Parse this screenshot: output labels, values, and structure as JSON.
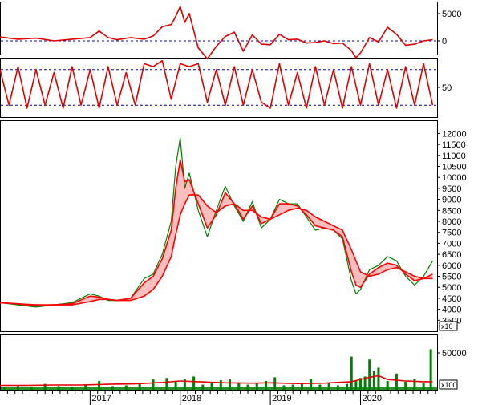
{
  "chart_data": [
    {
      "type": "line",
      "panel": "oscillator",
      "ylim": [
        -2500,
        7200
      ],
      "yticks": [
        {
          "value": 5000,
          "label": "5000"
        },
        {
          "value": 0,
          "label": "0"
        }
      ],
      "reference_lines": [
        0
      ],
      "series": [
        {
          "color": "#e00000",
          "x": [
            2016.0,
            2016.2,
            2016.4,
            2016.6,
            2016.8,
            2017.0,
            2017.1,
            2017.2,
            2017.3,
            2017.45,
            2017.6,
            2017.7,
            2017.8,
            2017.9,
            2017.95,
            2018.0,
            2018.05,
            2018.1,
            2018.2,
            2018.3,
            2018.4,
            2018.5,
            2018.6,
            2018.7,
            2018.8,
            2018.9,
            2019.0,
            2019.1,
            2019.2,
            2019.3,
            2019.4,
            2019.5,
            2019.6,
            2019.7,
            2019.8,
            2019.9,
            2019.95,
            2020.0,
            2020.1,
            2020.2,
            2020.3,
            2020.4,
            2020.5,
            2020.6,
            2020.7,
            2020.8
          ],
          "values": [
            700,
            300,
            500,
            0,
            300,
            600,
            1800,
            600,
            200,
            600,
            300,
            900,
            2600,
            3000,
            4500,
            6300,
            3400,
            5000,
            -1300,
            -3300,
            -1000,
            800,
            1600,
            -1900,
            1100,
            -600,
            -700,
            1200,
            200,
            300,
            -400,
            -300,
            0,
            -500,
            -400,
            -1800,
            -3100,
            -2200,
            600,
            -200,
            2500,
            1200,
            -800,
            -600,
            0,
            200
          ]
        }
      ]
    },
    {
      "type": "line",
      "panel": "stochastic",
      "ylim": [
        0,
        100
      ],
      "yticks": [
        {
          "value": 50,
          "label": "50"
        }
      ],
      "reference_lines": [
        20,
        80
      ],
      "series": [
        {
          "color": "#e00000",
          "x": [
            2016.0,
            2016.1,
            2016.2,
            2016.3,
            2016.4,
            2016.5,
            2016.6,
            2016.7,
            2016.8,
            2016.9,
            2017.0,
            2017.1,
            2017.2,
            2017.3,
            2017.4,
            2017.5,
            2017.6,
            2017.7,
            2017.8,
            2017.9,
            2018.0,
            2018.1,
            2018.2,
            2018.3,
            2018.4,
            2018.5,
            2018.6,
            2018.7,
            2018.8,
            2018.9,
            2019.0,
            2019.1,
            2019.2,
            2019.3,
            2019.4,
            2019.5,
            2019.6,
            2019.7,
            2019.8,
            2019.9,
            2020.0,
            2020.1,
            2020.2,
            2020.3,
            2020.4,
            2020.5,
            2020.6,
            2020.7,
            2020.8
          ],
          "values": [
            80,
            20,
            85,
            15,
            80,
            20,
            75,
            15,
            85,
            20,
            80,
            15,
            85,
            20,
            75,
            20,
            90,
            85,
            95,
            30,
            90,
            85,
            90,
            25,
            80,
            20,
            85,
            20,
            80,
            25,
            15,
            90,
            20,
            75,
            15,
            85,
            20,
            80,
            15,
            85,
            20,
            90,
            20,
            80,
            15,
            85,
            20,
            90,
            20
          ]
        }
      ]
    },
    {
      "type": "line",
      "panel": "price",
      "ylim": [
        3000,
        12600
      ],
      "yticks": [
        3500,
        4000,
        4500,
        5000,
        5500,
        6000,
        6500,
        7000,
        7500,
        8000,
        8500,
        9000,
        9500,
        10000,
        10500,
        11000,
        11500,
        12000
      ],
      "multiplier_label": "x10",
      "series": [
        {
          "role": "price",
          "color": "#008000",
          "x": [
            2016.0,
            2016.2,
            2016.4,
            2016.6,
            2016.8,
            2017.0,
            2017.1,
            2017.2,
            2017.3,
            2017.45,
            2017.6,
            2017.7,
            2017.8,
            2017.9,
            2017.95,
            2018.0,
            2018.05,
            2018.1,
            2018.2,
            2018.3,
            2018.4,
            2018.5,
            2018.6,
            2018.7,
            2018.8,
            2018.9,
            2019.0,
            2019.1,
            2019.2,
            2019.3,
            2019.4,
            2019.5,
            2019.6,
            2019.7,
            2019.8,
            2019.9,
            2019.95,
            2020.0,
            2020.1,
            2020.2,
            2020.3,
            2020.4,
            2020.5,
            2020.6,
            2020.7,
            2020.8
          ],
          "values": [
            4300,
            4200,
            4100,
            4200,
            4300,
            4700,
            4600,
            4400,
            4400,
            4500,
            5400,
            5600,
            6500,
            8000,
            10500,
            11800,
            9500,
            10200,
            8500,
            7300,
            8500,
            9600,
            8700,
            8000,
            8900,
            7700,
            8100,
            9000,
            8800,
            8800,
            8200,
            7600,
            7700,
            7600,
            7200,
            5300,
            4700,
            4900,
            5800,
            6000,
            6400,
            6200,
            5500,
            5100,
            5500,
            6200
          ]
        },
        {
          "role": "moving-average-ribbon-fast",
          "color": "#ff0000",
          "x": [
            2016.0,
            2016.2,
            2016.4,
            2016.6,
            2016.8,
            2017.0,
            2017.1,
            2017.2,
            2017.3,
            2017.45,
            2017.6,
            2017.7,
            2017.8,
            2017.9,
            2017.95,
            2018.0,
            2018.05,
            2018.1,
            2018.2,
            2018.3,
            2018.4,
            2018.5,
            2018.6,
            2018.7,
            2018.8,
            2018.9,
            2019.0,
            2019.1,
            2019.2,
            2019.3,
            2019.4,
            2019.5,
            2019.6,
            2019.7,
            2019.8,
            2019.9,
            2019.95,
            2020.0,
            2020.1,
            2020.2,
            2020.3,
            2020.4,
            2020.5,
            2020.6,
            2020.7,
            2020.8
          ],
          "values": [
            4300,
            4250,
            4150,
            4200,
            4250,
            4600,
            4550,
            4450,
            4400,
            4500,
            5200,
            5500,
            6300,
            7600,
            9500,
            10800,
            9800,
            9900,
            8800,
            7700,
            8300,
            9300,
            8800,
            8100,
            8700,
            7900,
            8100,
            8800,
            8800,
            8700,
            8300,
            7800,
            7700,
            7600,
            7300,
            5700,
            5100,
            5000,
            5600,
            5900,
            6100,
            6000,
            5600,
            5300,
            5400,
            5600
          ]
        },
        {
          "role": "moving-average-ribbon-slow",
          "color": "#ff0000",
          "x": [
            2016.0,
            2016.2,
            2016.4,
            2016.6,
            2016.8,
            2017.0,
            2017.1,
            2017.2,
            2017.3,
            2017.45,
            2017.6,
            2017.7,
            2017.8,
            2017.9,
            2017.95,
            2018.0,
            2018.05,
            2018.1,
            2018.2,
            2018.3,
            2018.4,
            2018.5,
            2018.6,
            2018.7,
            2018.8,
            2018.9,
            2019.0,
            2019.1,
            2019.2,
            2019.3,
            2019.4,
            2019.5,
            2019.6,
            2019.7,
            2019.8,
            2019.9,
            2019.95,
            2020.0,
            2020.1,
            2020.2,
            2020.3,
            2020.4,
            2020.5,
            2020.6,
            2020.7,
            2020.8
          ],
          "values": [
            4300,
            4250,
            4200,
            4200,
            4200,
            4350,
            4450,
            4450,
            4400,
            4400,
            4600,
            4900,
            5500,
            6400,
            7400,
            8300,
            8800,
            9200,
            9200,
            8700,
            8400,
            8700,
            8800,
            8500,
            8500,
            8200,
            8100,
            8300,
            8500,
            8600,
            8500,
            8200,
            8000,
            7800,
            7600,
            6700,
            6200,
            5700,
            5500,
            5600,
            5800,
            5900,
            5700,
            5500,
            5400,
            5400
          ]
        }
      ]
    },
    {
      "type": "bar",
      "panel": "volume",
      "ylim": [
        0,
        75000
      ],
      "yticks": [
        {
          "value": 50000,
          "label": "50000"
        }
      ],
      "multiplier_label": "x100",
      "series": [
        {
          "role": "volume",
          "color": "#008000",
          "x": [
            2016.05,
            2016.2,
            2016.35,
            2016.5,
            2016.65,
            2016.8,
            2016.95,
            2017.1,
            2017.25,
            2017.4,
            2017.55,
            2017.7,
            2017.85,
            2017.95,
            2018.05,
            2018.15,
            2018.25,
            2018.35,
            2018.45,
            2018.55,
            2018.65,
            2018.75,
            2018.85,
            2018.95,
            2019.05,
            2019.15,
            2019.25,
            2019.35,
            2019.45,
            2019.55,
            2019.65,
            2019.75,
            2019.85,
            2019.9,
            2019.95,
            2020.0,
            2020.05,
            2020.1,
            2020.15,
            2020.2,
            2020.3,
            2020.4,
            2020.5,
            2020.6,
            2020.7,
            2020.78
          ],
          "values": [
            3000,
            5000,
            4000,
            8000,
            5000,
            4000,
            6000,
            12000,
            5000,
            6000,
            9000,
            14000,
            16000,
            12000,
            15000,
            18000,
            7000,
            9000,
            13000,
            14000,
            10000,
            7000,
            9000,
            12000,
            17000,
            6000,
            7000,
            8000,
            15000,
            7000,
            9000,
            6000,
            8000,
            45000,
            12000,
            16000,
            18000,
            41000,
            25000,
            30000,
            12000,
            22000,
            11000,
            15000,
            9000,
            55000
          ]
        },
        {
          "role": "volume-average",
          "color": "#e00000",
          "x": [
            2016.0,
            2016.3,
            2016.6,
            2016.9,
            2017.2,
            2017.5,
            2017.8,
            2018.0,
            2018.2,
            2018.5,
            2018.8,
            2019.0,
            2019.3,
            2019.6,
            2019.9,
            2020.0,
            2020.1,
            2020.2,
            2020.3,
            2020.5,
            2020.7,
            2020.8
          ],
          "values": [
            6000,
            6000,
            6500,
            6500,
            7500,
            8000,
            10000,
            12000,
            11000,
            9500,
            9000,
            9500,
            8500,
            9000,
            11000,
            14000,
            17000,
            19000,
            14000,
            12000,
            11000,
            11000
          ]
        }
      ]
    }
  ],
  "x_axis": {
    "ticks": [
      {
        "value": 2017,
        "label": "2017"
      },
      {
        "value": 2018,
        "label": "2018"
      },
      {
        "value": 2019,
        "label": "2019"
      },
      {
        "value": 2020,
        "label": "2020"
      }
    ]
  }
}
